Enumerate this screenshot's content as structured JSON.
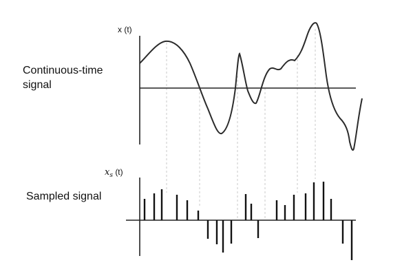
{
  "labels": {
    "continuous_line1": "Continuous-time",
    "continuous_line2": "signal",
    "sampled": "Sampled signal",
    "xt": "x (t)",
    "xs_symbol": "x",
    "xs_sub": "s",
    "xs_arg": "(t)"
  }
}
